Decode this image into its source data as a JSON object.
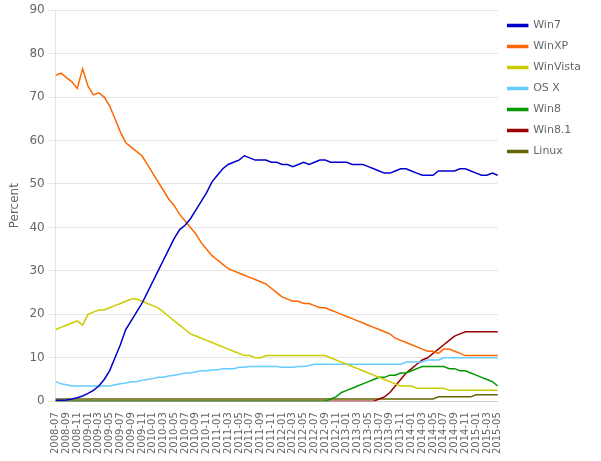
{
  "chart_data": {
    "type": "line",
    "y_label": "Percent",
    "categories": [
      "2008-07",
      null,
      "2008-09",
      null,
      "2008-11",
      null,
      "2009-01",
      null,
      "2009-03",
      null,
      "2009-05",
      null,
      "2009-07",
      null,
      "2009-09",
      null,
      "2009-11",
      null,
      "2010-01",
      null,
      "2010-03",
      null,
      "2010-05",
      null,
      "2010-07",
      null,
      "2010-09",
      null,
      "2010-11",
      null,
      "2011-01",
      null,
      "2011-03",
      null,
      "2011-05",
      null,
      "2011-07",
      null,
      "2011-09",
      null,
      "2011-11",
      null,
      "2012-01",
      null,
      "2012-03",
      null,
      "2012-05",
      null,
      "2012-07",
      null,
      "2012-09",
      null,
      "2012-11",
      null,
      "2013-01",
      null,
      "2013-03",
      null,
      "2013-05",
      null,
      "2013-07",
      null,
      "2013-09",
      null,
      "2013-11",
      null,
      "2014-01",
      null,
      "2014-03",
      null,
      "2014-05",
      null,
      "2014-07",
      null,
      "2014-09",
      null,
      "2014-11",
      null,
      "2015-01",
      null,
      "2015-03",
      null,
      "2015-05"
    ],
    "series": [
      {
        "name": "Win7",
        "color": "#0000cc",
        "values": [
          0.2,
          0.2,
          0.3,
          0.5,
          0.8,
          1.2,
          1.8,
          2.5,
          3.5,
          5.0,
          7.0,
          10.0,
          13.0,
          16.5,
          18.5,
          20.5,
          22.5,
          25.0,
          27.5,
          30.0,
          32.5,
          35.0,
          37.5,
          39.5,
          40.5,
          42.0,
          44.0,
          46.0,
          48.0,
          50.5,
          52.0,
          53.5,
          54.5,
          55.0,
          55.5,
          56.5,
          56.0,
          55.5,
          55.5,
          55.5,
          55.0,
          55.0,
          54.5,
          54.5,
          54.0,
          54.5,
          55.0,
          54.5,
          55.0,
          55.5,
          55.5,
          55.0,
          55.0,
          55.0,
          55.0,
          54.5,
          54.5,
          54.5,
          54.0,
          53.5,
          53.0,
          52.5,
          52.5,
          53.0,
          53.5,
          53.5,
          53.0,
          52.5,
          52.0,
          52.0,
          52.0,
          53.0,
          53.0,
          53.0,
          53.0,
          53.5,
          53.5,
          53.0,
          52.5,
          52.0,
          52.0,
          52.5,
          52.0
        ]
      },
      {
        "name": "WinXP",
        "color": "#ff6600",
        "values": [
          75.0,
          75.5,
          74.5,
          73.5,
          72.0,
          76.5,
          72.5,
          70.5,
          71.0,
          70.0,
          68.0,
          65.0,
          62.0,
          59.5,
          58.5,
          57.5,
          56.5,
          54.5,
          52.5,
          50.5,
          48.5,
          46.5,
          45.0,
          43.0,
          41.5,
          40.0,
          38.5,
          36.5,
          35.0,
          33.5,
          32.5,
          31.5,
          30.5,
          30.0,
          29.5,
          29.0,
          28.5,
          28.0,
          27.5,
          27.0,
          26.0,
          25.0,
          24.0,
          23.5,
          23.0,
          23.0,
          22.5,
          22.5,
          22.0,
          21.5,
          21.5,
          21.0,
          20.5,
          20.0,
          19.5,
          19.0,
          18.5,
          18.0,
          17.5,
          17.0,
          16.5,
          16.0,
          15.5,
          14.5,
          14.0,
          13.5,
          13.0,
          12.5,
          12.0,
          11.5,
          11.5,
          11.0,
          12.0,
          12.0,
          11.5,
          11.0,
          10.5,
          10.5,
          10.5,
          10.5,
          10.5,
          10.5,
          10.5
        ]
      },
      {
        "name": "WinVista",
        "color": "#cccc00",
        "values": [
          16.5,
          17.0,
          17.5,
          18.0,
          18.5,
          17.5,
          20.0,
          20.5,
          21.0,
          21.0,
          21.5,
          22.0,
          22.5,
          23.0,
          23.5,
          23.5,
          23.0,
          22.5,
          22.0,
          21.5,
          20.5,
          19.5,
          18.5,
          17.5,
          16.5,
          15.5,
          15.0,
          14.5,
          14.0,
          13.5,
          13.0,
          12.5,
          12.0,
          11.5,
          11.0,
          10.5,
          10.5,
          10.0,
          10.0,
          10.5,
          10.5,
          10.5,
          10.5,
          10.5,
          10.5,
          10.5,
          10.5,
          10.5,
          10.5,
          10.5,
          10.5,
          10.0,
          9.5,
          9.0,
          8.5,
          8.0,
          7.5,
          7.0,
          6.5,
          6.0,
          5.5,
          5.0,
          4.5,
          4.0,
          3.5,
          3.5,
          3.5,
          3.0,
          3.0,
          3.0,
          3.0,
          3.0,
          3.0,
          2.5,
          2.5,
          2.5,
          2.5,
          2.5,
          2.5,
          2.5,
          2.5,
          2.5,
          2.5
        ]
      },
      {
        "name": "OS X",
        "color": "#66ccff",
        "values": [
          4.5,
          4.0,
          3.8,
          3.5,
          3.5,
          3.5,
          3.5,
          3.5,
          3.5,
          3.5,
          3.5,
          3.8,
          4.0,
          4.2,
          4.5,
          4.5,
          4.8,
          5.0,
          5.2,
          5.5,
          5.5,
          5.8,
          6.0,
          6.2,
          6.5,
          6.5,
          6.8,
          7.0,
          7.0,
          7.2,
          7.2,
          7.5,
          7.5,
          7.5,
          7.8,
          7.8,
          8.0,
          8.0,
          8.0,
          8.0,
          8.0,
          8.0,
          7.8,
          7.8,
          7.8,
          8.0,
          8.0,
          8.2,
          8.5,
          8.5,
          8.5,
          8.5,
          8.5,
          8.5,
          8.5,
          8.5,
          8.5,
          8.5,
          8.5,
          8.5,
          8.5,
          8.5,
          8.5,
          8.5,
          8.5,
          9.0,
          9.0,
          9.0,
          9.0,
          9.5,
          9.5,
          9.5,
          10.0,
          10.0,
          10.0,
          10.0,
          10.0,
          10.0,
          10.0,
          10.0,
          10.0,
          10.0,
          10.0
        ]
      },
      {
        "name": "Win8",
        "color": "#009900",
        "values": [
          0.0,
          0.0,
          0.0,
          0.0,
          0.0,
          0.0,
          0.0,
          0.0,
          0.0,
          0.0,
          0.0,
          0.0,
          0.0,
          0.0,
          0.0,
          0.0,
          0.0,
          0.0,
          0.0,
          0.0,
          0.0,
          0.0,
          0.0,
          0.0,
          0.0,
          0.0,
          0.0,
          0.0,
          0.0,
          0.0,
          0.0,
          0.0,
          0.0,
          0.0,
          0.0,
          0.0,
          0.0,
          0.0,
          0.0,
          0.0,
          0.0,
          0.0,
          0.0,
          0.0,
          0.0,
          0.0,
          0.0,
          0.0,
          0.0,
          0.0,
          0.0,
          0.5,
          1.0,
          2.0,
          2.5,
          3.0,
          3.5,
          4.0,
          4.5,
          5.0,
          5.5,
          5.5,
          6.0,
          6.0,
          6.5,
          6.5,
          7.0,
          7.5,
          8.0,
          8.0,
          8.0,
          8.0,
          8.0,
          7.5,
          7.5,
          7.0,
          7.0,
          6.5,
          6.0,
          5.5,
          5.0,
          4.5,
          3.5
        ]
      },
      {
        "name": "Win8.1",
        "color": "#990000",
        "values": [
          0.0,
          0.0,
          0.0,
          0.0,
          0.0,
          0.0,
          0.0,
          0.0,
          0.0,
          0.0,
          0.0,
          0.0,
          0.0,
          0.0,
          0.0,
          0.0,
          0.0,
          0.0,
          0.0,
          0.0,
          0.0,
          0.0,
          0.0,
          0.0,
          0.0,
          0.0,
          0.0,
          0.0,
          0.0,
          0.0,
          0.0,
          0.0,
          0.0,
          0.0,
          0.0,
          0.0,
          0.0,
          0.0,
          0.0,
          0.0,
          0.0,
          0.0,
          0.0,
          0.0,
          0.0,
          0.0,
          0.0,
          0.0,
          0.0,
          0.0,
          0.0,
          0.0,
          0.0,
          0.0,
          0.0,
          0.0,
          0.0,
          0.0,
          0.0,
          0.0,
          0.5,
          1.0,
          2.0,
          3.5,
          5.0,
          6.5,
          7.5,
          8.5,
          9.5,
          10.0,
          11.0,
          12.0,
          13.0,
          14.0,
          15.0,
          15.5,
          16.0,
          16.0,
          16.0,
          16.0,
          16.0,
          16.0,
          16.0
        ]
      },
      {
        "name": "Linux",
        "color": "#666600",
        "values": [
          0.5,
          0.5,
          0.5,
          0.5,
          0.5,
          0.5,
          0.5,
          0.5,
          0.5,
          0.5,
          0.5,
          0.5,
          0.5,
          0.5,
          0.5,
          0.5,
          0.5,
          0.5,
          0.5,
          0.5,
          0.5,
          0.5,
          0.5,
          0.5,
          0.5,
          0.5,
          0.5,
          0.5,
          0.5,
          0.5,
          0.5,
          0.5,
          0.5,
          0.5,
          0.5,
          0.5,
          0.5,
          0.5,
          0.5,
          0.5,
          0.5,
          0.5,
          0.5,
          0.5,
          0.5,
          0.5,
          0.5,
          0.5,
          0.5,
          0.5,
          0.5,
          0.5,
          0.5,
          0.5,
          0.5,
          0.5,
          0.5,
          0.5,
          0.5,
          0.5,
          0.5,
          0.5,
          0.5,
          0.5,
          0.5,
          0.5,
          0.5,
          0.5,
          0.5,
          0.5,
          0.5,
          1.0,
          1.0,
          1.0,
          1.0,
          1.0,
          1.0,
          1.0,
          1.5,
          1.5,
          1.5,
          1.5,
          1.5
        ]
      }
    ],
    "ylim": [
      0,
      90
    ],
    "yticks": [
      0,
      10,
      20,
      30,
      40,
      50,
      60,
      70,
      80,
      90
    ],
    "grid": "y",
    "legend": "upper right"
  }
}
